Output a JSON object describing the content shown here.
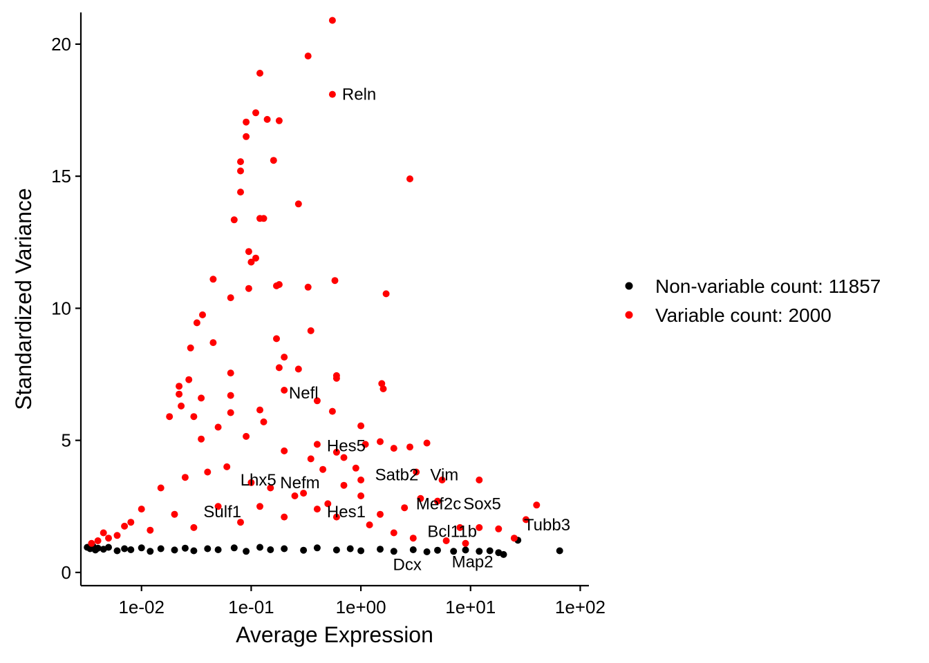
{
  "chart_data": {
    "type": "scatter",
    "xlabel": "Average Expression",
    "ylabel": "Standardized Variance",
    "x_scale": "log10",
    "xlim": [
      0.0028,
      120
    ],
    "ylim": [
      -0.5,
      21.2
    ],
    "x_ticks": [
      {
        "value": 0.01,
        "label": "1e-02"
      },
      {
        "value": 0.1,
        "label": "1e-01"
      },
      {
        "value": 1,
        "label": "1e+00"
      },
      {
        "value": 10,
        "label": "1e+01"
      },
      {
        "value": 100,
        "label": "1e+02"
      }
    ],
    "y_ticks": [
      {
        "value": 0,
        "label": "0"
      },
      {
        "value": 5,
        "label": "5"
      },
      {
        "value": 10,
        "label": "10"
      },
      {
        "value": 15,
        "label": "15"
      },
      {
        "value": 20,
        "label": "20"
      }
    ],
    "grid": false,
    "legend_position": "right",
    "series": [
      {
        "name": "Non-variable count: 11857",
        "color": "#000000",
        "points": [
          [
            0.0032,
            0.95
          ],
          [
            0.0034,
            0.9
          ],
          [
            0.0036,
            1.0
          ],
          [
            0.0038,
            0.85
          ],
          [
            0.004,
            0.92
          ],
          [
            0.0045,
            0.88
          ],
          [
            0.005,
            0.95
          ],
          [
            0.006,
            0.82
          ],
          [
            0.007,
            0.9
          ],
          [
            0.008,
            0.86
          ],
          [
            0.01,
            0.93
          ],
          [
            0.012,
            0.8
          ],
          [
            0.015,
            0.9
          ],
          [
            0.02,
            0.85
          ],
          [
            0.025,
            0.92
          ],
          [
            0.03,
            0.82
          ],
          [
            0.04,
            0.9
          ],
          [
            0.05,
            0.86
          ],
          [
            0.07,
            0.93
          ],
          [
            0.09,
            0.8
          ],
          [
            0.12,
            0.95
          ],
          [
            0.15,
            0.86
          ],
          [
            0.2,
            0.9
          ],
          [
            0.3,
            0.84
          ],
          [
            0.4,
            0.93
          ],
          [
            0.6,
            0.85
          ],
          [
            0.8,
            0.9
          ],
          [
            1.0,
            0.82
          ],
          [
            1.5,
            0.88
          ],
          [
            2.0,
            0.8
          ],
          [
            3.0,
            0.86
          ],
          [
            4.0,
            0.78
          ],
          [
            5.0,
            0.84
          ],
          [
            7.0,
            0.8
          ],
          [
            9.0,
            0.85
          ],
          [
            12.0,
            0.8
          ],
          [
            15.0,
            0.82
          ],
          [
            18.0,
            0.75
          ],
          [
            20.0,
            0.68
          ],
          [
            27.0,
            1.22
          ],
          [
            65.0,
            0.82
          ]
        ]
      },
      {
        "name": "Variable count: 2000",
        "color": "#ff0000",
        "points": [
          [
            0.55,
            20.9
          ],
          [
            0.33,
            19.55
          ],
          [
            0.12,
            18.9
          ],
          [
            0.55,
            18.1
          ],
          [
            0.11,
            17.4
          ],
          [
            0.09,
            17.05
          ],
          [
            0.14,
            17.15
          ],
          [
            0.18,
            17.1
          ],
          [
            0.09,
            16.5
          ],
          [
            0.08,
            15.55
          ],
          [
            0.16,
            15.6
          ],
          [
            0.08,
            15.2
          ],
          [
            0.08,
            14.4
          ],
          [
            2.8,
            14.9
          ],
          [
            0.27,
            13.95
          ],
          [
            0.12,
            13.4
          ],
          [
            0.13,
            13.4
          ],
          [
            0.07,
            13.35
          ],
          [
            0.095,
            12.15
          ],
          [
            0.11,
            11.9
          ],
          [
            0.1,
            11.75
          ],
          [
            0.045,
            11.1
          ],
          [
            0.58,
            11.05
          ],
          [
            0.18,
            10.9
          ],
          [
            0.17,
            10.85
          ],
          [
            0.095,
            10.75
          ],
          [
            0.33,
            10.8
          ],
          [
            0.065,
            10.4
          ],
          [
            1.7,
            10.55
          ],
          [
            0.036,
            9.75
          ],
          [
            0.032,
            9.45
          ],
          [
            0.35,
            9.15
          ],
          [
            0.17,
            8.85
          ],
          [
            0.045,
            8.7
          ],
          [
            0.028,
            8.5
          ],
          [
            0.2,
            8.15
          ],
          [
            0.18,
            7.75
          ],
          [
            0.27,
            7.7
          ],
          [
            0.065,
            7.55
          ],
          [
            0.6,
            7.45
          ],
          [
            0.6,
            7.35
          ],
          [
            0.027,
            7.3
          ],
          [
            0.022,
            7.05
          ],
          [
            1.55,
            7.15
          ],
          [
            1.6,
            6.95
          ],
          [
            0.065,
            6.7
          ],
          [
            0.2,
            6.9
          ],
          [
            0.022,
            6.75
          ],
          [
            0.035,
            6.6
          ],
          [
            0.4,
            6.5
          ],
          [
            0.023,
            6.3
          ],
          [
            0.12,
            6.15
          ],
          [
            0.065,
            6.05
          ],
          [
            0.03,
            5.9
          ],
          [
            0.018,
            5.9
          ],
          [
            0.55,
            6.1
          ],
          [
            1.0,
            5.55
          ],
          [
            0.05,
            5.5
          ],
          [
            0.13,
            5.7
          ],
          [
            0.035,
            5.05
          ],
          [
            0.09,
            5.15
          ],
          [
            0.4,
            4.85
          ],
          [
            1.1,
            4.85
          ],
          [
            4.0,
            4.9
          ],
          [
            0.6,
            4.55
          ],
          [
            1.5,
            4.95
          ],
          [
            0.2,
            4.6
          ],
          [
            0.35,
            4.3
          ],
          [
            2.0,
            4.7
          ],
          [
            2.8,
            4.75
          ],
          [
            0.9,
            3.95
          ],
          [
            0.7,
            4.35
          ],
          [
            0.45,
            3.9
          ],
          [
            1.0,
            3.5
          ],
          [
            3.2,
            3.8
          ],
          [
            5.5,
            3.5
          ],
          [
            12.0,
            3.5
          ],
          [
            40.0,
            2.55
          ],
          [
            32.0,
            2.0
          ],
          [
            25.0,
            1.3
          ],
          [
            18.0,
            1.65
          ],
          [
            12.0,
            1.7
          ],
          [
            8.0,
            1.7
          ],
          [
            5.0,
            2.7
          ],
          [
            3.5,
            2.8
          ],
          [
            2.5,
            2.45
          ],
          [
            1.5,
            2.2
          ],
          [
            1.0,
            2.9
          ],
          [
            0.7,
            3.3
          ],
          [
            0.5,
            2.6
          ],
          [
            0.3,
            3.0
          ],
          [
            0.2,
            2.1
          ],
          [
            0.12,
            2.5
          ],
          [
            0.08,
            1.9
          ],
          [
            0.05,
            2.5
          ],
          [
            0.03,
            1.7
          ],
          [
            0.02,
            2.2
          ],
          [
            0.012,
            1.6
          ],
          [
            0.008,
            1.9
          ],
          [
            0.006,
            1.4
          ],
          [
            0.005,
            1.3
          ],
          [
            0.004,
            1.2
          ],
          [
            0.0035,
            1.1
          ],
          [
            0.0045,
            1.5
          ],
          [
            0.007,
            1.75
          ],
          [
            0.01,
            2.4
          ],
          [
            0.015,
            3.2
          ],
          [
            0.025,
            3.6
          ],
          [
            0.04,
            3.8
          ],
          [
            0.06,
            4.0
          ],
          [
            0.1,
            3.4
          ],
          [
            0.15,
            3.2
          ],
          [
            0.25,
            2.9
          ],
          [
            0.4,
            2.4
          ],
          [
            0.6,
            2.1
          ],
          [
            1.2,
            1.8
          ],
          [
            2.0,
            1.5
          ],
          [
            3.0,
            1.3
          ],
          [
            6.0,
            1.2
          ],
          [
            9.0,
            1.1
          ]
        ]
      }
    ],
    "annotations": [
      {
        "label": "Reln",
        "x": 0.55,
        "y": 18.1
      },
      {
        "label": "Nefl",
        "x": 0.18,
        "y": 6.8
      },
      {
        "label": "Hes5",
        "x": 0.4,
        "y": 4.8
      },
      {
        "label": "Satb2",
        "x": 1.1,
        "y": 3.7
      },
      {
        "label": "Vim",
        "x": 3.5,
        "y": 3.7
      },
      {
        "label": "Lhx5",
        "x": 0.065,
        "y": 3.5
      },
      {
        "label": "Nefm",
        "x": 0.15,
        "y": 3.4
      },
      {
        "label": "Mef2c",
        "x": 2.6,
        "y": 2.6
      },
      {
        "label": "Sox5",
        "x": 7.0,
        "y": 2.6
      },
      {
        "label": "Sulf1",
        "x": 0.03,
        "y": 2.3
      },
      {
        "label": "Hes1",
        "x": 0.4,
        "y": 2.3
      },
      {
        "label": "Tubb3",
        "x": 25.0,
        "y": 1.8
      },
      {
        "label": "Bcl11b",
        "x": 3.3,
        "y": 1.55
      },
      {
        "label": "Dcx",
        "x": 1.6,
        "y": 0.3
      },
      {
        "label": "Map2",
        "x": 5.5,
        "y": 0.4
      }
    ]
  }
}
